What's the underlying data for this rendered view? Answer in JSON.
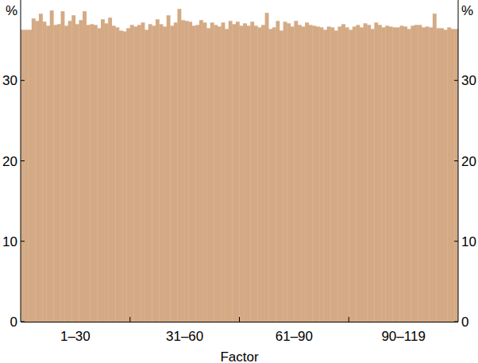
{
  "chart_data": {
    "type": "bar",
    "ylabel": "%",
    "xlabel": "Factor",
    "color": "#d4aa85",
    "categories": [
      null,
      null,
      null,
      null,
      null,
      null,
      null,
      null,
      null,
      null,
      null,
      null,
      null,
      null,
      null,
      "1–30",
      null,
      null,
      null,
      null,
      null,
      null,
      null,
      null,
      null,
      null,
      null,
      null,
      null,
      null,
      null,
      null,
      null,
      null,
      null,
      null,
      null,
      null,
      null,
      null,
      null,
      null,
      null,
      null,
      null,
      "31–60",
      null,
      null,
      null,
      null,
      null,
      null,
      null,
      null,
      null,
      null,
      null,
      null,
      null,
      null,
      null,
      null,
      null,
      null,
      null,
      null,
      null,
      null,
      null,
      null,
      null,
      null,
      null,
      null,
      null,
      "61–90",
      null,
      null,
      null,
      null,
      null,
      null,
      null,
      null,
      null,
      null,
      null,
      null,
      null,
      null,
      null,
      null,
      null,
      null,
      null,
      null,
      null,
      null,
      null,
      null,
      null,
      null,
      null,
      null,
      null,
      "90–119",
      null,
      null,
      null,
      null,
      null,
      null,
      null,
      null,
      null,
      null,
      null,
      null,
      null,
      null
    ],
    "values": [
      36.3,
      36.3,
      36.3,
      37.7,
      37.4,
      38.3,
      37.3,
      36.8,
      38.7,
      36.9,
      37.0,
      38.6,
      36.8,
      37.4,
      38.1,
      37.0,
      37.5,
      38.6,
      36.9,
      37.0,
      36.9,
      36.5,
      37.6,
      37.1,
      37.8,
      36.8,
      36.6,
      36.2,
      36.1,
      36.5,
      36.9,
      36.7,
      36.9,
      37.2,
      36.3,
      37.0,
      36.8,
      37.6,
      37.0,
      36.7,
      38.1,
      36.8,
      37.2,
      38.9,
      37.5,
      37.4,
      37.3,
      36.8,
      36.9,
      37.5,
      37.2,
      36.5,
      37.2,
      36.9,
      36.7,
      37.2,
      36.4,
      37.4,
      37.0,
      37.3,
      36.8,
      37.1,
      36.8,
      37.3,
      36.8,
      36.6,
      36.9,
      38.4,
      36.4,
      36.6,
      37.4,
      36.2,
      37.3,
      37.1,
      36.7,
      37.4,
      36.9,
      36.7,
      37.2,
      36.9,
      36.8,
      36.7,
      36.6,
      36.3,
      36.7,
      36.6,
      36.2,
      36.7,
      37.0,
      36.6,
      36.3,
      36.7,
      36.9,
      36.6,
      37.1,
      36.9,
      36.4,
      37.2,
      36.9,
      36.6,
      36.8,
      36.7,
      36.6,
      36.6,
      36.8,
      36.7,
      36.4,
      36.8,
      36.9,
      36.9,
      36.6,
      36.7,
      36.6,
      38.3,
      36.5,
      36.5,
      36.3,
      36.6,
      36.4,
      36.4
    ],
    "ylim": [
      0,
      40
    ],
    "yticks": [
      0,
      10,
      20,
      30
    ],
    "grid": false
  }
}
